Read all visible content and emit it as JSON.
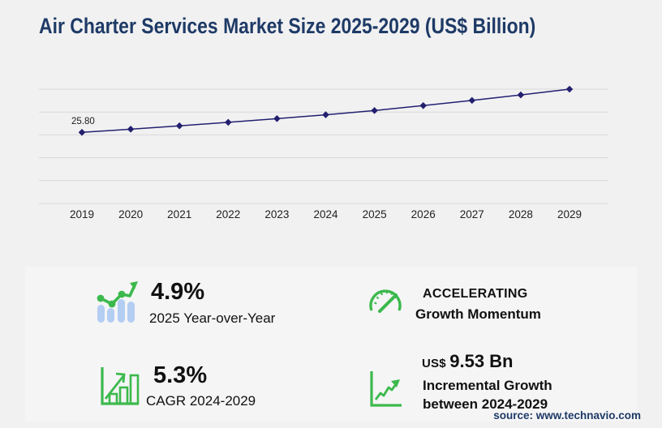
{
  "title": "Air Charter Services Market Size 2025-2029 (US$ Billion)",
  "source": "source: www.technavio.com",
  "chart_data": {
    "type": "line",
    "title": "Air Charter Services Market Size 2025-2029 (US$ Billion)",
    "x": [
      "2019",
      "2020",
      "2021",
      "2022",
      "2023",
      "2024",
      "2025",
      "2026",
      "2027",
      "2028",
      "2029"
    ],
    "series": [
      {
        "name": "Market size (US$ Billion)",
        "values": [
          25.8,
          26.99,
          28.24,
          29.54,
          30.91,
          32.34,
          33.92,
          35.76,
          37.69,
          39.73,
          41.87
        ]
      }
    ],
    "data_labels": [
      {
        "x": "2019",
        "text": "25.80"
      }
    ],
    "marker": "diamond",
    "line_color": "#23206f",
    "grid": "horizontal",
    "gridline_color": "#d9d9db",
    "legend": false,
    "xlabel": "",
    "ylabel": "",
    "ylim": [
      0,
      45
    ]
  },
  "stats": {
    "yoy": {
      "value": "4.9%",
      "label": "2025 Year-over-Year"
    },
    "cagr": {
      "value": "5.3%",
      "label": "CAGR 2024-2029"
    },
    "momentum": {
      "line1": "ACCELERATING",
      "line2": "Growth Momentum"
    },
    "incremental": {
      "currency": "US$",
      "value": "9.53 Bn",
      "line1": "Incremental Growth",
      "line2": "between 2024-2029"
    }
  },
  "colors": {
    "title_navy": "#1e3a66",
    "line_navy": "#23206f",
    "accent_green": "#3cb94c",
    "bar_light_blue": "#b4cdf3",
    "gridline": "#d9d9db",
    "text_black": "#111111",
    "background": "#f1f1f2",
    "panel": "#f5f5f6"
  }
}
